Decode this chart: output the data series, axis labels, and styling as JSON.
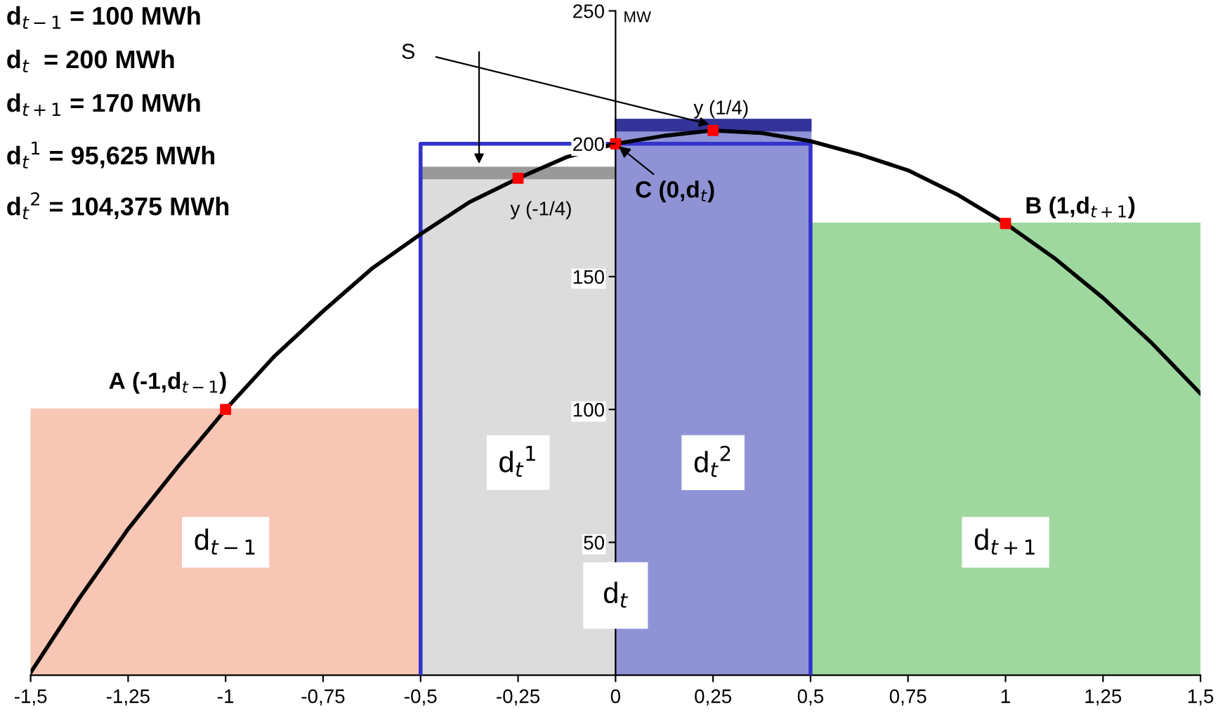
{
  "chart_data": {
    "type": "histogram",
    "ylabel": "MW",
    "xlim": [
      -1.5,
      1.5
    ],
    "xticks": [
      {
        "value": -1.5,
        "label": "-1,5"
      },
      {
        "value": -1.25,
        "label": "-1,25"
      },
      -1,
      {
        "value": -0.75,
        "label": "-0,75"
      },
      {
        "value": -0.5,
        "label": "-0,5"
      },
      {
        "value": -0.25,
        "label": "-0,25"
      },
      0,
      {
        "value": 0.25,
        "label": "0,25"
      },
      {
        "value": 0.5,
        "label": "0,5"
      },
      {
        "value": 0.75,
        "label": "0,75"
      },
      1,
      {
        "value": 1.25,
        "label": "1,25"
      },
      {
        "value": 1.5,
        "label": "1,5"
      }
    ],
    "ylim": [
      0,
      250
    ],
    "yticks": [
      50,
      100,
      150,
      200,
      250
    ],
    "grid": false,
    "legend": false,
    "series": [
      {
        "bins": [
          -1.5,
          -0.5,
          0,
          0.5,
          1.5
        ],
        "values": [
          100,
          191,
          209,
          170
        ],
        "colors": [
          "#f7c6b5",
          "#dcdcdc",
          "#8f93d6",
          "#9fd89f"
        ]
      },
      {
        "type": "line",
        "color": "#3333cc",
        "x": [
          -0.5,
          -0.5,
          0.5,
          0.5
        ],
        "values": [
          0,
          200,
          200,
          0
        ]
      },
      {
        "type": "histogram",
        "bins": [
          -0.5,
          0,
          0.5
        ],
        "base": [
          187,
          205
        ],
        "values": [
          4,
          4
        ],
        "colors": [
          "#999999",
          "#333399"
        ]
      },
      {
        "type": "line",
        "color": "#000000",
        "x": [
          -1.5,
          -1.375,
          -1.25,
          -1.125,
          -1,
          -0.875,
          -0.75,
          -0.625,
          -0.5,
          -0.375,
          -0.25,
          -0.125,
          0,
          0.125,
          0.25,
          0.375,
          0.5,
          0.625,
          0.75,
          0.875,
          1,
          1.125,
          1.25,
          1.375,
          1.5
        ],
        "values": [
          1,
          29,
          55,
          78,
          100,
          120,
          137,
          153,
          166,
          178,
          187,
          195,
          200,
          203,
          205,
          204,
          201,
          196,
          190,
          181,
          170,
          157,
          142,
          125,
          106
        ]
      },
      {
        "type": "scatter",
        "color": "#ff0000",
        "marker": "square",
        "x": [
          -1,
          -0.25,
          0,
          0.25,
          1
        ],
        "values": [
          100,
          187,
          200,
          205,
          170
        ]
      }
    ],
    "annotations": [
      "d$_{t−1}$ = 100 MWh",
      "d$_{t}$  = 200 MWh",
      "d$_{t+1}$ = 170 MWh",
      "d$_{t}$$^{1}$ = 95,625 MWh",
      "d$_{t}$$^{2}$ = 104,375 MWh",
      "d$_{t−1}$",
      "d$_{t}$$^{1}$",
      "d$_{t}$$^{2}$",
      "d$_{t+1}$",
      "d$_{t}$",
      {
        "text": "A (-1,d$_{t−1}$)",
        "x": -1,
        "y": 100
      },
      {
        "text": "B (1,d$_{t+1}$)",
        "x": 1,
        "y": 170
      },
      {
        "text": "C (0,d$_{t}$)",
        "x": 0,
        "y": 200
      },
      {
        "text": "y (-1/4)",
        "x": -0.25,
        "y": 187
      },
      {
        "text": "y (1/4)",
        "x": 0.25,
        "y": 205
      },
      {
        "text": "S",
        "x": 0.25,
        "y": 207
      }
    ]
  }
}
